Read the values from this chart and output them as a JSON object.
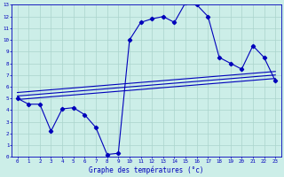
{
  "title": "Graphe des températures (°c)",
  "bg_color": "#cceee8",
  "grid_color": "#aad4cc",
  "line_color": "#0000bb",
  "xlim": [
    -0.5,
    23.5
  ],
  "ylim": [
    0,
    13
  ],
  "xticks": [
    0,
    1,
    2,
    3,
    4,
    5,
    6,
    7,
    8,
    9,
    10,
    11,
    12,
    13,
    14,
    15,
    16,
    17,
    18,
    19,
    20,
    21,
    22,
    23
  ],
  "yticks": [
    0,
    1,
    2,
    3,
    4,
    5,
    6,
    7,
    8,
    9,
    10,
    11,
    12,
    13
  ],
  "curve1_x": [
    0,
    1,
    2,
    3,
    4,
    5,
    6,
    7,
    8,
    9,
    10,
    11,
    12,
    13,
    14,
    15,
    16,
    17,
    18,
    19,
    20,
    21,
    22,
    23
  ],
  "curve1_y": [
    5.0,
    4.5,
    4.5,
    2.2,
    4.1,
    4.2,
    3.6,
    2.5,
    0.2,
    0.3,
    10.0,
    11.5,
    11.8,
    12.0,
    11.5,
    13.2,
    13.0,
    12.0,
    8.5,
    8.0,
    7.5,
    9.5,
    8.5,
    6.5
  ],
  "curve2_x": [
    0,
    23
  ],
  "curve2_y": [
    5.2,
    7.0
  ],
  "curve3_x": [
    0,
    23
  ],
  "curve3_y": [
    5.5,
    7.3
  ],
  "curve4_x": [
    0,
    23
  ],
  "curve4_y": [
    4.9,
    6.7
  ]
}
